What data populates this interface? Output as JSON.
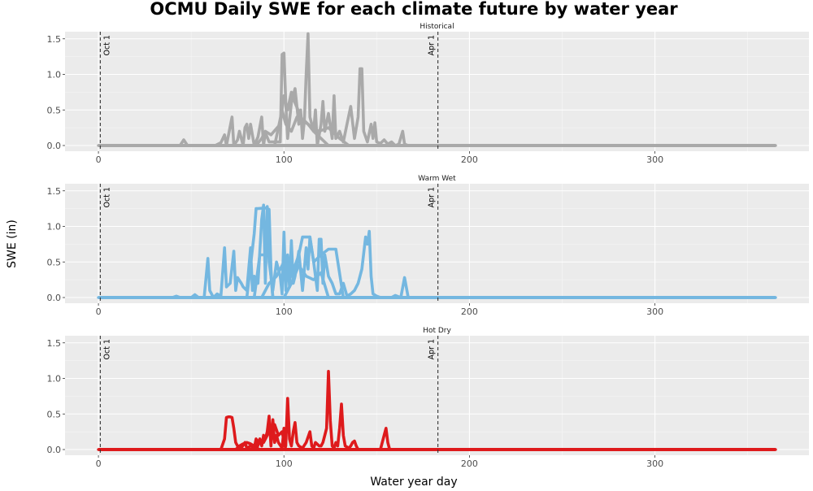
{
  "chart_data": {
    "type": "line",
    "title": "OCMU Daily SWE for each climate future by water year",
    "xlabel": "Water year day",
    "ylabel": "SWE (in)",
    "xlim": [
      -18,
      383
    ],
    "ylim": [
      -0.08,
      1.6
    ],
    "x_ticks": [
      0,
      100,
      200,
      300
    ],
    "y_ticks": [
      0.0,
      0.5,
      1.0,
      1.5
    ],
    "y_tick_labels": [
      "0.0",
      "0.5",
      "1.0",
      "1.5"
    ],
    "grid": true,
    "background": "#ebebeb",
    "reference_lines": [
      {
        "x": 1,
        "label": "Oct 1"
      },
      {
        "x": 183,
        "label": "Apr 1"
      }
    ],
    "panels": [
      {
        "name": "Historical",
        "color": "#a9a9a9",
        "x_end": 365,
        "series": [
          {
            "x": [
              0,
              44,
              46,
              48,
              63,
              66,
              68,
              69,
              72,
              73,
              75,
              76,
              78,
              79,
              80,
              81,
              82,
              84,
              86,
              88,
              89,
              90,
              92,
              95,
              98,
              99,
              100,
              101,
              102,
              104,
              106,
              108,
              109,
              110,
              111,
              112,
              113,
              114,
              116,
              117,
              118,
              120,
              121,
              122,
              124,
              126,
              127,
              128,
              130,
              132,
              134,
              136,
              138,
              140,
              141,
              142,
              143,
              145,
              147,
              148,
              149,
              150,
              152,
              154,
              156,
              158,
              160,
              162,
              164,
              165,
              167,
              170,
              175,
              185,
              250,
              365
            ],
            "y": [
              0,
              0,
              0.08,
              0,
              0,
              0.04,
              0.15,
              0,
              0.4,
              0,
              0.08,
              0.2,
              0,
              0.25,
              0.3,
              0.1,
              0.3,
              0,
              0.12,
              0.4,
              0,
              0.18,
              0.05,
              0.05,
              0.05,
              1.28,
              1.3,
              0.6,
              0.1,
              0.6,
              0.8,
              0.3,
              0.5,
              0.1,
              0.35,
              1.0,
              1.57,
              0.4,
              0.2,
              0.5,
              0,
              0.3,
              0.62,
              0.2,
              0.45,
              0.1,
              0.7,
              0.1,
              0.2,
              0.05,
              0.3,
              0.55,
              0.1,
              0.4,
              1.08,
              1.08,
              0.2,
              0.05,
              0.3,
              0.1,
              0.32,
              0.05,
              0.03,
              0.08,
              0.02,
              0.05,
              0,
              0.02,
              0.2,
              0.02,
              0,
              0,
              0,
              0,
              0,
              0
            ]
          },
          {
            "x": [
              85,
              88,
              90,
              93,
              98,
              100,
              102,
              104,
              106,
              110,
              113,
              116,
              120,
              124
            ],
            "y": [
              0,
              0.1,
              0.2,
              0.15,
              0.3,
              0.7,
              0.5,
              0.75,
              0.6,
              0.35,
              0.3,
              0.2,
              0.1,
              0
            ]
          },
          {
            "x": [
              95,
              99,
              101,
              104,
              107,
              111,
              115,
              119,
              124,
              130,
              135
            ],
            "y": [
              0,
              0.5,
              0.3,
              0.2,
              0.4,
              0.35,
              0.25,
              0.2,
              0.25,
              0.1,
              0
            ]
          }
        ]
      },
      {
        "name": "Warm Wet",
        "color": "#74b7e0",
        "x_end": 365,
        "series": [
          {
            "x": [
              0,
              40,
              42,
              44,
              50,
              52,
              54,
              57,
              59,
              60,
              62,
              64,
              66,
              68,
              69,
              71,
              73,
              74,
              75,
              77,
              78,
              80,
              82,
              83,
              84,
              86,
              88,
              89,
              90,
              91,
              92,
              94,
              96,
              98,
              99,
              100,
              101,
              102,
              103,
              104,
              105,
              106,
              108,
              110,
              112,
              113,
              114,
              116,
              118,
              119,
              120,
              121,
              122,
              124,
              126,
              128,
              130,
              132,
              134,
              136,
              138,
              140,
              142,
              144,
              145,
              146,
              147,
              148,
              150,
              152,
              158,
              160,
              163,
              165,
              167,
              170,
              185,
              250,
              365
            ],
            "y": [
              0,
              0,
              0.02,
              0,
              0,
              0.04,
              0,
              0,
              0.55,
              0.1,
              0,
              0.05,
              0.02,
              0.7,
              0.15,
              0.2,
              0.65,
              0.1,
              0.28,
              0.2,
              0.15,
              0.1,
              0.7,
              0.1,
              0.3,
              0.2,
              1.1,
              1.3,
              0.2,
              1.28,
              0.5,
              0.1,
              0.5,
              0.3,
              0.05,
              0.92,
              0.1,
              0.6,
              0.15,
              0.8,
              0.2,
              0.3,
              0.65,
              0.1,
              0.7,
              0.4,
              0.85,
              0.5,
              0.1,
              0.82,
              0.82,
              0.2,
              0.6,
              0.3,
              0.2,
              0.05,
              0.05,
              0.2,
              0.02,
              0.05,
              0.1,
              0.2,
              0.4,
              0.85,
              0.75,
              0.93,
              0.3,
              0.05,
              0.02,
              0,
              0,
              0.03,
              0,
              0.28,
              0,
              0,
              0,
              0,
              0
            ]
          },
          {
            "x": [
              80,
              84,
              85,
              86,
              90,
              91,
              92,
              93,
              94
            ],
            "y": [
              0,
              0.9,
              1.25,
              1.25,
              1.26,
              1.25,
              1.24,
              0.4,
              0
            ]
          },
          {
            "x": [
              84,
              86,
              87,
              88,
              90,
              92,
              93,
              94
            ],
            "y": [
              0,
              0.4,
              0.6,
              0.6,
              0.6,
              0.6,
              0.3,
              0
            ]
          },
          {
            "x": [
              88,
              92,
              96,
              100,
              104,
              108,
              110,
              112,
              114,
              116,
              120,
              124,
              128,
              132
            ],
            "y": [
              0,
              0.2,
              0.3,
              0.5,
              0.3,
              0.6,
              0.85,
              0.85,
              0.85,
              0.5,
              0.6,
              0.68,
              0.68,
              0
            ]
          },
          {
            "x": [
              100,
              104,
              108,
              112,
              116,
              120,
              124
            ],
            "y": [
              0,
              0.2,
              0.45,
              0.3,
              0.25,
              0.35,
              0
            ]
          }
        ]
      },
      {
        "name": "Hot Dry",
        "color": "#de1a1c",
        "x_end": 365,
        "series": [
          {
            "x": [
              0,
              66,
              68,
              69,
              70,
              71,
              72,
              73,
              74,
              75,
              77,
              79,
              80,
              82,
              84,
              85,
              86,
              87,
              88,
              89,
              90,
              91,
              92,
              93,
              94,
              95,
              96,
              97,
              99,
              100,
              101,
              102,
              103,
              104,
              105,
              106,
              107,
              108,
              110,
              112,
              114,
              115,
              116,
              117,
              119,
              120,
              121,
              122,
              123,
              124,
              125,
              126,
              127,
              128,
              129,
              130,
              131,
              132,
              133,
              135,
              136,
              137,
              138,
              139,
              140,
              152,
              154,
              155,
              156,
              157,
              160,
              185,
              250,
              365
            ],
            "y": [
              0,
              0,
              0.15,
              0.45,
              0.46,
              0.46,
              0.45,
              0.3,
              0.1,
              0.05,
              0.02,
              0.1,
              0.02,
              0.05,
              0.02,
              0.15,
              0.1,
              0.15,
              0.05,
              0.2,
              0.15,
              0.25,
              0.47,
              0.05,
              0.42,
              0.1,
              0.2,
              0.1,
              0.02,
              0.3,
              0.05,
              0.72,
              0.15,
              0.05,
              0.25,
              0.38,
              0.1,
              0.05,
              0.02,
              0.1,
              0.25,
              0.05,
              0.02,
              0.1,
              0.05,
              0.05,
              0.1,
              0.2,
              0.3,
              1.1,
              0.4,
              0.05,
              0.02,
              0.1,
              0.05,
              0.3,
              0.64,
              0.2,
              0.05,
              0.02,
              0.05,
              0.1,
              0.12,
              0.05,
              0,
              0,
              0.2,
              0.3,
              0.1,
              0,
              0,
              0,
              0,
              0
            ]
          },
          {
            "x": [
              74,
              76,
              78,
              80,
              82,
              84,
              85,
              86
            ],
            "y": [
              0,
              0.05,
              0.08,
              0.1,
              0.08,
              0.05,
              0.1,
              0
            ]
          },
          {
            "x": [
              85,
              87,
              89,
              91,
              93,
              95,
              97,
              99,
              101
            ],
            "y": [
              0,
              0.12,
              0.1,
              0.2,
              0.3,
              0.35,
              0.2,
              0.25,
              0
            ]
          }
        ]
      }
    ]
  }
}
